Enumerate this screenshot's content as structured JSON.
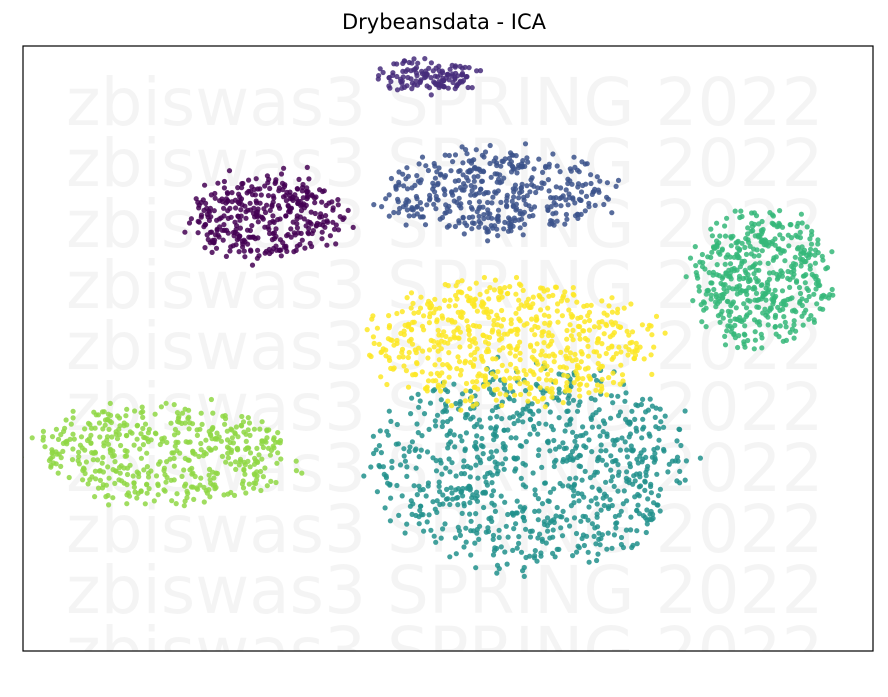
{
  "chart_data": {
    "type": "scatter",
    "title": "Drybeansdata - ICA",
    "xlabel": "",
    "ylabel": "",
    "axes_ticks": "none",
    "grid": false,
    "legend": "none",
    "watermark": {
      "text": "zbiswas3 SPRING 2022",
      "repeat_rows": 10
    },
    "series": [
      {
        "color": "#440154",
        "center": [
          -3.4,
          3.1
        ],
        "spread": [
          1.45,
          0.85
        ],
        "count": 360
      },
      {
        "color": "#472d7b",
        "center": [
          -0.4,
          5.9
        ],
        "spread": [
          0.95,
          0.28
        ],
        "count": 130
      },
      {
        "color": "#3b528b",
        "center": [
          0.9,
          3.6
        ],
        "spread": [
          2.2,
          0.85
        ],
        "count": 420
      },
      {
        "color": "#21918c",
        "center": [
          1.6,
          -1.9
        ],
        "spread": [
          3.0,
          2.0
        ],
        "count": 820
      },
      {
        "color": "#35b779",
        "center": [
          5.9,
          1.9
        ],
        "spread": [
          1.3,
          1.35
        ],
        "count": 480
      },
      {
        "color": "#8fd744",
        "center": [
          -5.3,
          -1.6
        ],
        "spread": [
          2.4,
          1.0
        ],
        "count": 470
      },
      {
        "color": "#fde725",
        "center": [
          1.2,
          0.6
        ],
        "spread": [
          2.75,
          1.25
        ],
        "count": 620
      }
    ],
    "xlim": [
      -8,
      8
    ],
    "ylim": [
      -5.5,
      6.5
    ]
  }
}
